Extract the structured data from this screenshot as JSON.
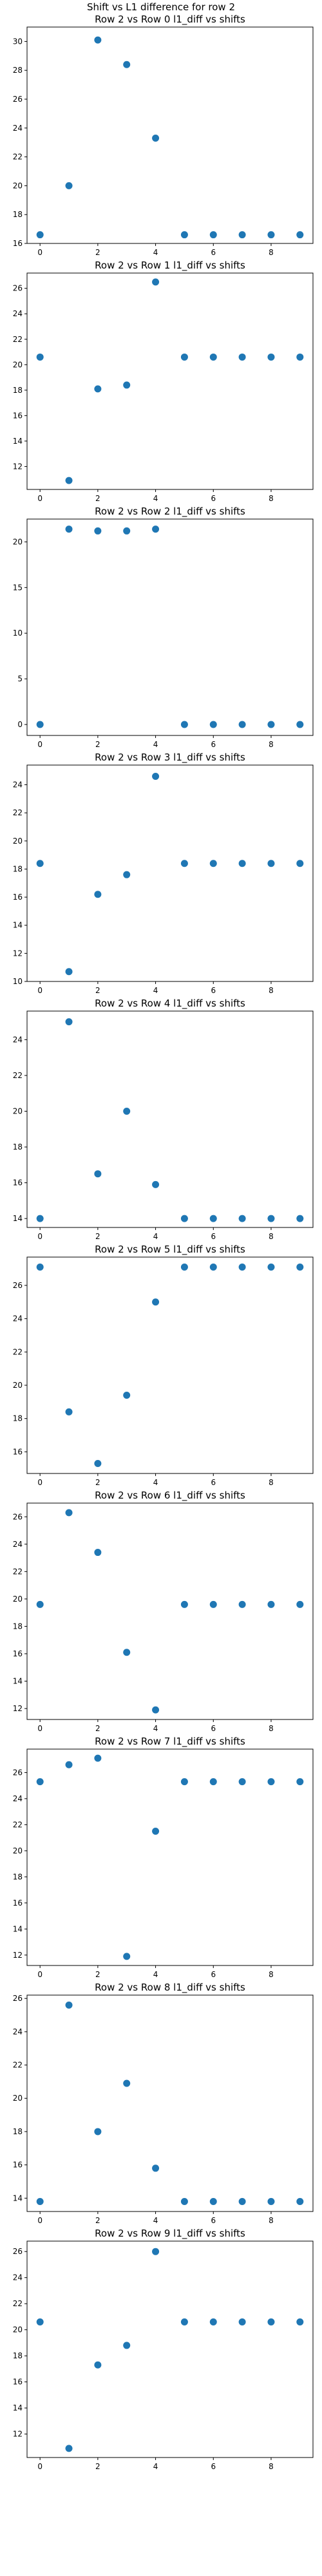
{
  "suptitle": "Shift vs L1 difference for row 2",
  "chart_data": [
    {
      "type": "scatter",
      "title": "Row 2 vs Row 0 l1_diff vs shifts",
      "x": [
        0,
        1,
        2,
        3,
        4,
        5,
        6,
        7,
        8,
        9
      ],
      "y": [
        16.6,
        20.0,
        30.1,
        28.4,
        23.3,
        16.6,
        16.6,
        16.6,
        16.6,
        16.6
      ],
      "xlim": [
        -0.45,
        9.45
      ],
      "ylim": [
        16.0,
        31.0
      ],
      "xticks": [
        0,
        2,
        4,
        6,
        8
      ],
      "yticks": [
        16,
        18,
        20,
        22,
        24,
        26,
        28,
        30
      ],
      "color": "#1f77b4",
      "grid": false
    },
    {
      "type": "scatter",
      "title": "Row 2 vs Row 1 l1_diff vs shifts",
      "x": [
        0,
        1,
        2,
        3,
        4,
        5,
        6,
        7,
        8,
        9
      ],
      "y": [
        20.6,
        10.9,
        18.1,
        18.4,
        26.5,
        20.6,
        20.6,
        20.6,
        20.6,
        20.6
      ],
      "xlim": [
        -0.45,
        9.45
      ],
      "ylim": [
        10.2,
        27.2
      ],
      "xticks": [
        0,
        2,
        4,
        6,
        8
      ],
      "yticks": [
        12,
        14,
        16,
        18,
        20,
        22,
        24,
        26
      ],
      "color": "#1f77b4",
      "grid": false
    },
    {
      "type": "scatter",
      "title": "Row 2 vs Row 2 l1_diff vs shifts",
      "x": [
        0,
        1,
        2,
        3,
        4,
        5,
        6,
        7,
        8,
        9
      ],
      "y": [
        0.0,
        21.4,
        21.2,
        21.2,
        21.4,
        0.0,
        0.0,
        0.0,
        0.0,
        0.0
      ],
      "xlim": [
        -0.45,
        9.45
      ],
      "ylim": [
        -1.2,
        22.5
      ],
      "xticks": [
        0,
        2,
        4,
        6,
        8
      ],
      "yticks": [
        0,
        5,
        10,
        15,
        20
      ],
      "color": "#1f77b4",
      "grid": false
    },
    {
      "type": "scatter",
      "title": "Row 2 vs Row 3 l1_diff vs shifts",
      "x": [
        0,
        1,
        2,
        3,
        4,
        5,
        6,
        7,
        8,
        9
      ],
      "y": [
        18.4,
        10.7,
        16.2,
        17.6,
        24.6,
        18.4,
        18.4,
        18.4,
        18.4,
        18.4
      ],
      "xlim": [
        -0.45,
        9.45
      ],
      "ylim": [
        10.0,
        25.4
      ],
      "xticks": [
        0,
        2,
        4,
        6,
        8
      ],
      "yticks": [
        10,
        12,
        14,
        16,
        18,
        20,
        22,
        24
      ],
      "color": "#1f77b4",
      "grid": false
    },
    {
      "type": "scatter",
      "title": "Row 2 vs Row 4 l1_diff vs shifts",
      "x": [
        0,
        1,
        2,
        3,
        4,
        5,
        6,
        7,
        8,
        9
      ],
      "y": [
        14.0,
        25.0,
        16.5,
        20.0,
        15.9,
        14.0,
        14.0,
        14.0,
        14.0,
        14.0
      ],
      "xlim": [
        -0.45,
        9.45
      ],
      "ylim": [
        13.5,
        25.6
      ],
      "xticks": [
        0,
        2,
        4,
        6,
        8
      ],
      "yticks": [
        14,
        16,
        18,
        20,
        22,
        24
      ],
      "color": "#1f77b4",
      "grid": false
    },
    {
      "type": "scatter",
      "title": "Row 2 vs Row 5 l1_diff vs shifts",
      "x": [
        0,
        1,
        2,
        3,
        4,
        5,
        6,
        7,
        8,
        9
      ],
      "y": [
        27.1,
        18.4,
        15.3,
        19.4,
        25.0,
        27.1,
        27.1,
        27.1,
        27.1,
        27.1
      ],
      "xlim": [
        -0.45,
        9.45
      ],
      "ylim": [
        14.7,
        27.7
      ],
      "xticks": [
        0,
        2,
        4,
        6,
        8
      ],
      "yticks": [
        16,
        18,
        20,
        22,
        24,
        26
      ],
      "color": "#1f77b4",
      "grid": false
    },
    {
      "type": "scatter",
      "title": "Row 2 vs Row 6 l1_diff vs shifts",
      "x": [
        0,
        1,
        2,
        3,
        4,
        5,
        6,
        7,
        8,
        9
      ],
      "y": [
        19.6,
        26.3,
        23.4,
        16.1,
        11.9,
        19.6,
        19.6,
        19.6,
        19.6,
        19.6
      ],
      "xlim": [
        -0.45,
        9.45
      ],
      "ylim": [
        11.2,
        27.0
      ],
      "xticks": [
        0,
        2,
        4,
        6,
        8
      ],
      "yticks": [
        12,
        14,
        16,
        18,
        20,
        22,
        24,
        26
      ],
      "color": "#1f77b4",
      "grid": false
    },
    {
      "type": "scatter",
      "title": "Row 2 vs Row 7 l1_diff vs shifts",
      "x": [
        0,
        1,
        2,
        3,
        4,
        5,
        6,
        7,
        8,
        9
      ],
      "y": [
        25.3,
        26.6,
        27.1,
        11.9,
        21.5,
        25.3,
        25.3,
        25.3,
        25.3,
        25.3
      ],
      "xlim": [
        -0.45,
        9.45
      ],
      "ylim": [
        11.2,
        27.8
      ],
      "xticks": [
        0,
        2,
        4,
        6,
        8
      ],
      "yticks": [
        12,
        14,
        16,
        18,
        20,
        22,
        24,
        26
      ],
      "color": "#1f77b4",
      "grid": false
    },
    {
      "type": "scatter",
      "title": "Row 2 vs Row 8 l1_diff vs shifts",
      "x": [
        0,
        1,
        2,
        3,
        4,
        5,
        6,
        7,
        8,
        9
      ],
      "y": [
        13.8,
        25.6,
        18.0,
        20.9,
        15.8,
        13.8,
        13.8,
        13.8,
        13.8,
        13.8
      ],
      "xlim": [
        -0.45,
        9.45
      ],
      "ylim": [
        13.2,
        26.2
      ],
      "xticks": [
        0,
        2,
        4,
        6,
        8
      ],
      "yticks": [
        14,
        16,
        18,
        20,
        22,
        24,
        26
      ],
      "color": "#1f77b4",
      "grid": false
    },
    {
      "type": "scatter",
      "title": "Row 2 vs Row 9 l1_diff vs shifts",
      "x": [
        0,
        1,
        2,
        3,
        4,
        5,
        6,
        7,
        8,
        9
      ],
      "y": [
        20.6,
        10.9,
        17.3,
        18.8,
        26.0,
        20.6,
        20.6,
        20.6,
        20.6,
        20.6
      ],
      "xlim": [
        -0.45,
        9.45
      ],
      "ylim": [
        10.2,
        26.8
      ],
      "xticks": [
        0,
        2,
        4,
        6,
        8
      ],
      "yticks": [
        12,
        14,
        16,
        18,
        20,
        22,
        24,
        26
      ],
      "color": "#1f77b4",
      "grid": false
    }
  ]
}
